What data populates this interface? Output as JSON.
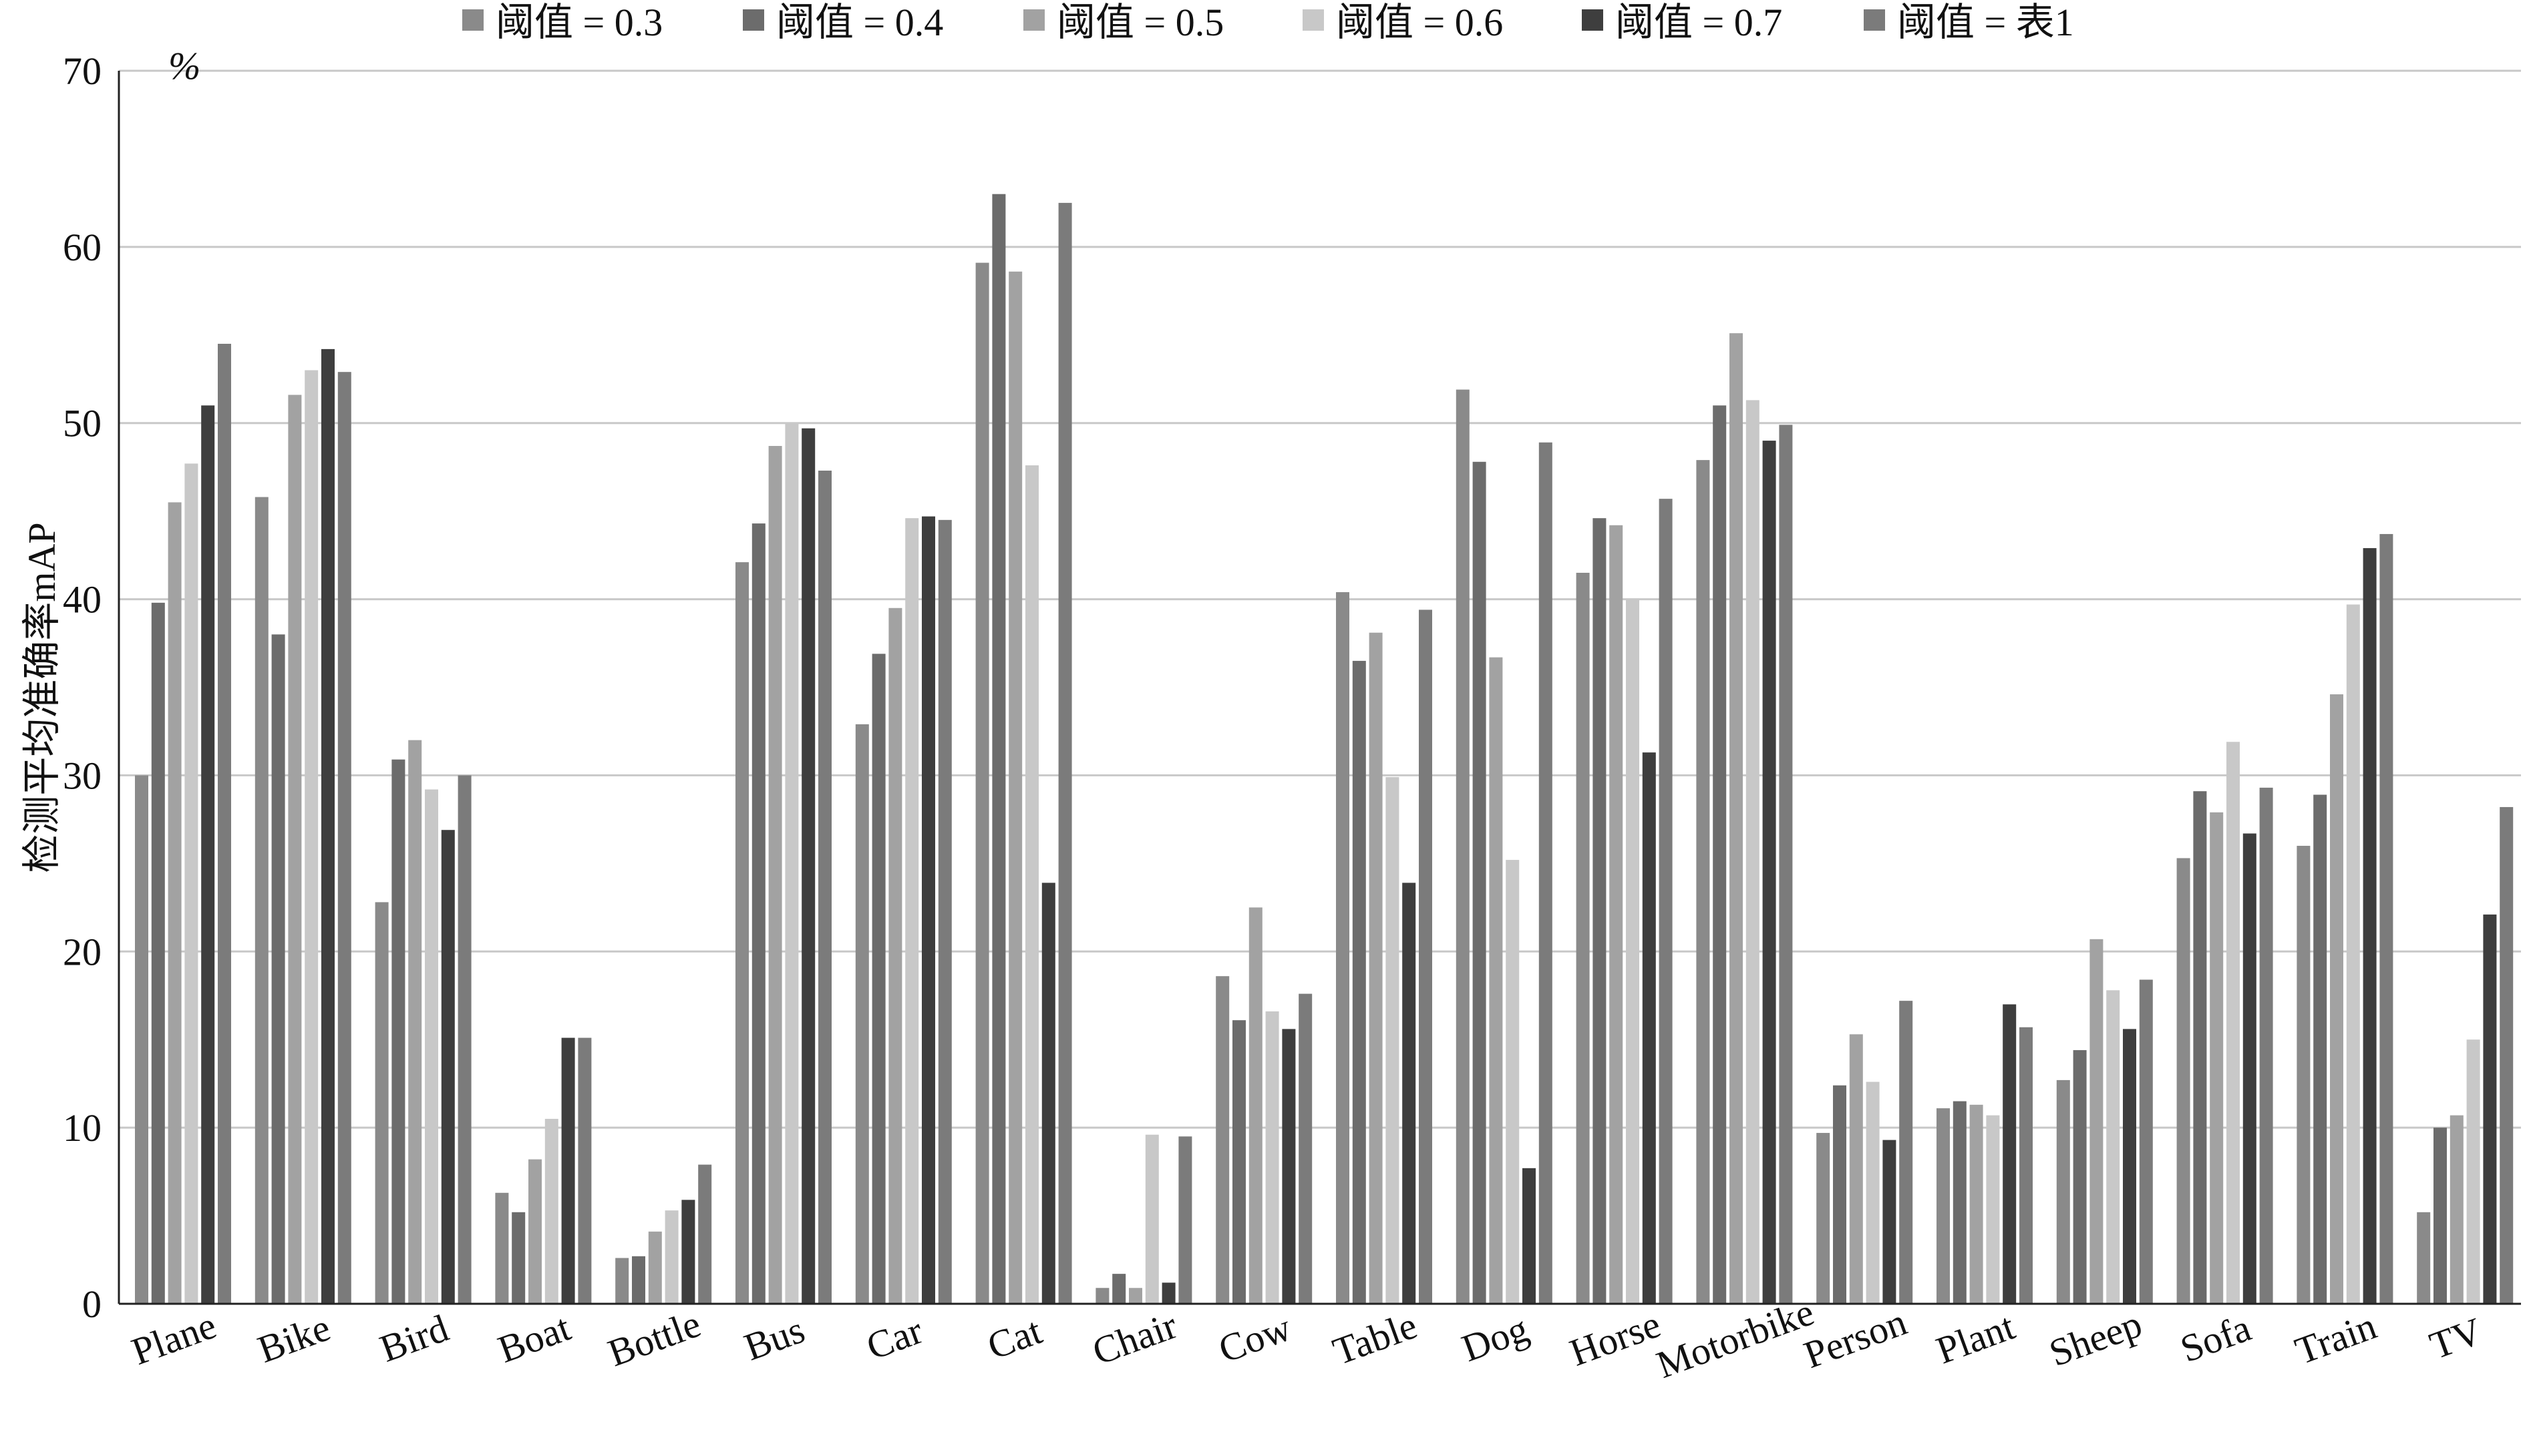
{
  "chart_data": {
    "type": "bar",
    "ylabel": "检测平均准确率mAP",
    "yunit": "%",
    "ylim": [
      0,
      70
    ],
    "yticks": [
      0,
      10,
      20,
      30,
      40,
      50,
      60,
      70
    ],
    "grid": true,
    "legend_position": "top",
    "categories": [
      "Plane",
      "Bike",
      "Bird",
      "Boat",
      "Bottle",
      "Bus",
      "Car",
      "Cat",
      "Chair",
      "Cow",
      "Table",
      "Dog",
      "Horse",
      "Motorbike",
      "Person",
      "Plant",
      "Sheep",
      "Sofa",
      "Train",
      "TV"
    ],
    "series": [
      {
        "name": "阈值 = 0.3",
        "color": "#8a8a8a",
        "values": [
          30.0,
          45.8,
          22.8,
          6.3,
          2.6,
          42.1,
          32.9,
          59.1,
          0.9,
          18.6,
          40.4,
          51.9,
          41.5,
          47.9,
          9.7,
          11.1,
          12.7,
          25.3,
          26.0,
          5.2
        ]
      },
      {
        "name": "阈值 = 0.4",
        "color": "#6c6c6c",
        "values": [
          39.8,
          38.0,
          30.9,
          5.2,
          2.7,
          44.3,
          36.9,
          63.0,
          1.7,
          16.1,
          36.5,
          47.8,
          44.6,
          51.0,
          12.4,
          11.5,
          14.4,
          29.1,
          28.9,
          10.0
        ]
      },
      {
        "name": "阈值 = 0.5",
        "color": "#a2a2a2",
        "values": [
          45.5,
          51.6,
          32.0,
          8.2,
          4.1,
          48.7,
          39.5,
          58.6,
          0.9,
          22.5,
          38.1,
          36.7,
          44.2,
          55.1,
          15.3,
          11.3,
          20.7,
          27.9,
          34.6,
          10.7
        ]
      },
      {
        "name": "阈值 = 0.6",
        "color": "#c8c8c8",
        "values": [
          47.7,
          53.0,
          29.2,
          10.5,
          5.3,
          50.0,
          44.6,
          47.6,
          9.6,
          16.6,
          29.9,
          25.2,
          40.0,
          51.3,
          12.6,
          10.7,
          17.8,
          31.9,
          39.7,
          15.0
        ]
      },
      {
        "name": "阈值 = 0.7",
        "color": "#3e3e3e",
        "values": [
          51.0,
          54.2,
          26.9,
          15.1,
          5.9,
          49.7,
          44.7,
          23.9,
          1.2,
          15.6,
          23.9,
          7.7,
          31.3,
          49.0,
          9.3,
          17.0,
          15.6,
          26.7,
          42.9,
          22.1
        ]
      },
      {
        "name": "阈值 = 表1",
        "color": "#7b7b7b",
        "values": [
          54.5,
          52.9,
          30.0,
          15.1,
          7.9,
          47.3,
          44.5,
          62.5,
          9.5,
          17.6,
          39.4,
          48.9,
          45.7,
          49.9,
          17.2,
          15.7,
          18.4,
          29.3,
          43.7,
          28.2
        ]
      }
    ]
  }
}
